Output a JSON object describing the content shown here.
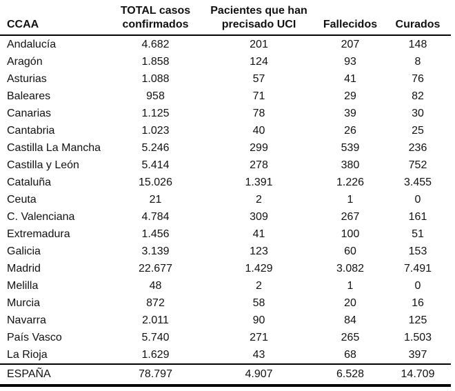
{
  "columns": {
    "ccaa": "CCAA",
    "total_line1": "TOTAL casos",
    "total_line2": "confirmados",
    "uci_line1": "Pacientes que han",
    "uci_line2": "precisado UCI",
    "fallecidos": "Fallecidos",
    "curados": "Curados"
  },
  "rows": [
    {
      "ccaa": "Andalucía",
      "total": "4.682",
      "uci": "201",
      "fallecidos": "207",
      "curados": "148"
    },
    {
      "ccaa": "Aragón",
      "total": "1.858",
      "uci": "124",
      "fallecidos": "93",
      "curados": "8"
    },
    {
      "ccaa": "Asturias",
      "total": "1.088",
      "uci": "57",
      "fallecidos": "41",
      "curados": "76"
    },
    {
      "ccaa": "Baleares",
      "total": "958",
      "uci": "71",
      "fallecidos": "29",
      "curados": "82"
    },
    {
      "ccaa": "Canarias",
      "total": "1.125",
      "uci": "78",
      "fallecidos": "39",
      "curados": "30"
    },
    {
      "ccaa": "Cantabria",
      "total": "1.023",
      "uci": "40",
      "fallecidos": "26",
      "curados": "25"
    },
    {
      "ccaa": "Castilla La Mancha",
      "total": "5.246",
      "uci": "299",
      "fallecidos": "539",
      "curados": "236"
    },
    {
      "ccaa": "Castilla y León",
      "total": "5.414",
      "uci": "278",
      "fallecidos": "380",
      "curados": "752"
    },
    {
      "ccaa": "Cataluña",
      "total": "15.026",
      "uci": "1.391",
      "fallecidos": "1.226",
      "curados": "3.455"
    },
    {
      "ccaa": "Ceuta",
      "total": "21",
      "uci": "2",
      "fallecidos": "1",
      "curados": "0"
    },
    {
      "ccaa": "C. Valenciana",
      "total": "4.784",
      "uci": "309",
      "fallecidos": "267",
      "curados": "161"
    },
    {
      "ccaa": "Extremadura",
      "total": "1.456",
      "uci": "41",
      "fallecidos": "100",
      "curados": "51"
    },
    {
      "ccaa": "Galicia",
      "total": "3.139",
      "uci": "123",
      "fallecidos": "60",
      "curados": "153"
    },
    {
      "ccaa": "Madrid",
      "total": "22.677",
      "uci": "1.429",
      "fallecidos": "3.082",
      "curados": "7.491"
    },
    {
      "ccaa": "Melilla",
      "total": "48",
      "uci": "2",
      "fallecidos": "1",
      "curados": "0"
    },
    {
      "ccaa": "Murcia",
      "total": "872",
      "uci": "58",
      "fallecidos": "20",
      "curados": "16"
    },
    {
      "ccaa": "Navarra",
      "total": "2.011",
      "uci": "90",
      "fallecidos": "84",
      "curados": "125"
    },
    {
      "ccaa": "País Vasco",
      "total": "5.740",
      "uci": "271",
      "fallecidos": "265",
      "curados": "1.503"
    },
    {
      "ccaa": "La Rioja",
      "total": "1.629",
      "uci": "43",
      "fallecidos": "68",
      "curados": "397"
    }
  ],
  "total": {
    "ccaa": "ESPAÑA",
    "total": "78.797",
    "uci": "4.907",
    "fallecidos": "6.528",
    "curados": "14.709"
  }
}
